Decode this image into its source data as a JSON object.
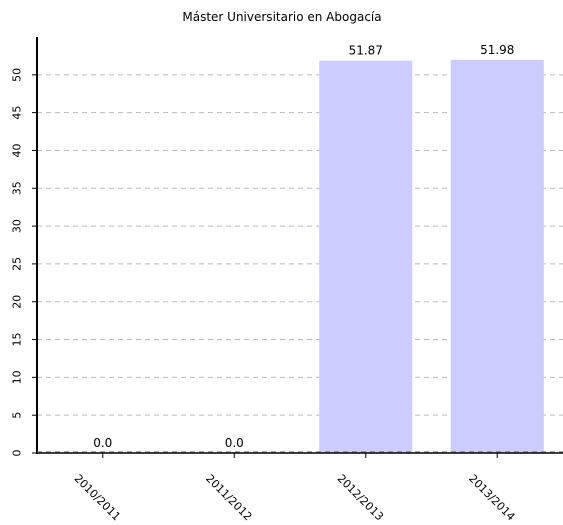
{
  "chart_data": {
    "type": "bar",
    "title": "Máster Universitario en Abogacía",
    "xlabel": "",
    "ylabel": "",
    "categories": [
      "2010/2011",
      "2011/2012",
      "2012/2013",
      "2013/2014"
    ],
    "values": [
      0.0,
      0.0,
      51.87,
      51.98
    ],
    "value_labels": [
      "0.0",
      "0.0",
      "51.87",
      "51.98"
    ],
    "ylim": [
      0,
      55
    ],
    "yticks": [
      0,
      5,
      10,
      15,
      20,
      25,
      30,
      35,
      40,
      45,
      50
    ],
    "grid": true,
    "legend": "none",
    "colors": {
      "bar": "#ccccff",
      "grid": "#bbbbbb",
      "axis": "#000000"
    }
  }
}
